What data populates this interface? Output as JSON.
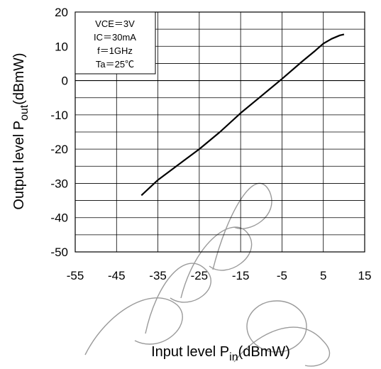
{
  "chart_data": {
    "type": "line",
    "xlabel": {
      "prefix": "Input level P",
      "sub": "in",
      "suffix": "(dBmW)"
    },
    "ylabel": {
      "prefix": "Output level P",
      "sub": "out",
      "suffix": "(dBmW)"
    },
    "xlim": [
      -55,
      15
    ],
    "ylim": [
      -50,
      20
    ],
    "x_ticks": [
      "-55",
      "-45",
      "-35",
      "-25",
      "-15",
      "-5",
      "5",
      "15"
    ],
    "y_ticks": [
      "20",
      "10",
      "0",
      "-10",
      "-20",
      "-30",
      "-40",
      "-50"
    ],
    "grid": true,
    "conditions": [
      "VCE＝3V",
      "IC＝30mA",
      "f＝1GHz",
      "Ta＝25℃"
    ],
    "series": [
      {
        "color": "#000000",
        "x": [
          -39,
          -35,
          -30,
          -25,
          -20,
          -15,
          -10,
          -5,
          0,
          3,
          5,
          7,
          9,
          10
        ],
        "y": [
          -33.5,
          -29,
          -24.5,
          -20,
          -15,
          -9.5,
          -4.5,
          0.5,
          5.7,
          8.7,
          10.8,
          12.2,
          13.2,
          13.5
        ]
      }
    ]
  }
}
